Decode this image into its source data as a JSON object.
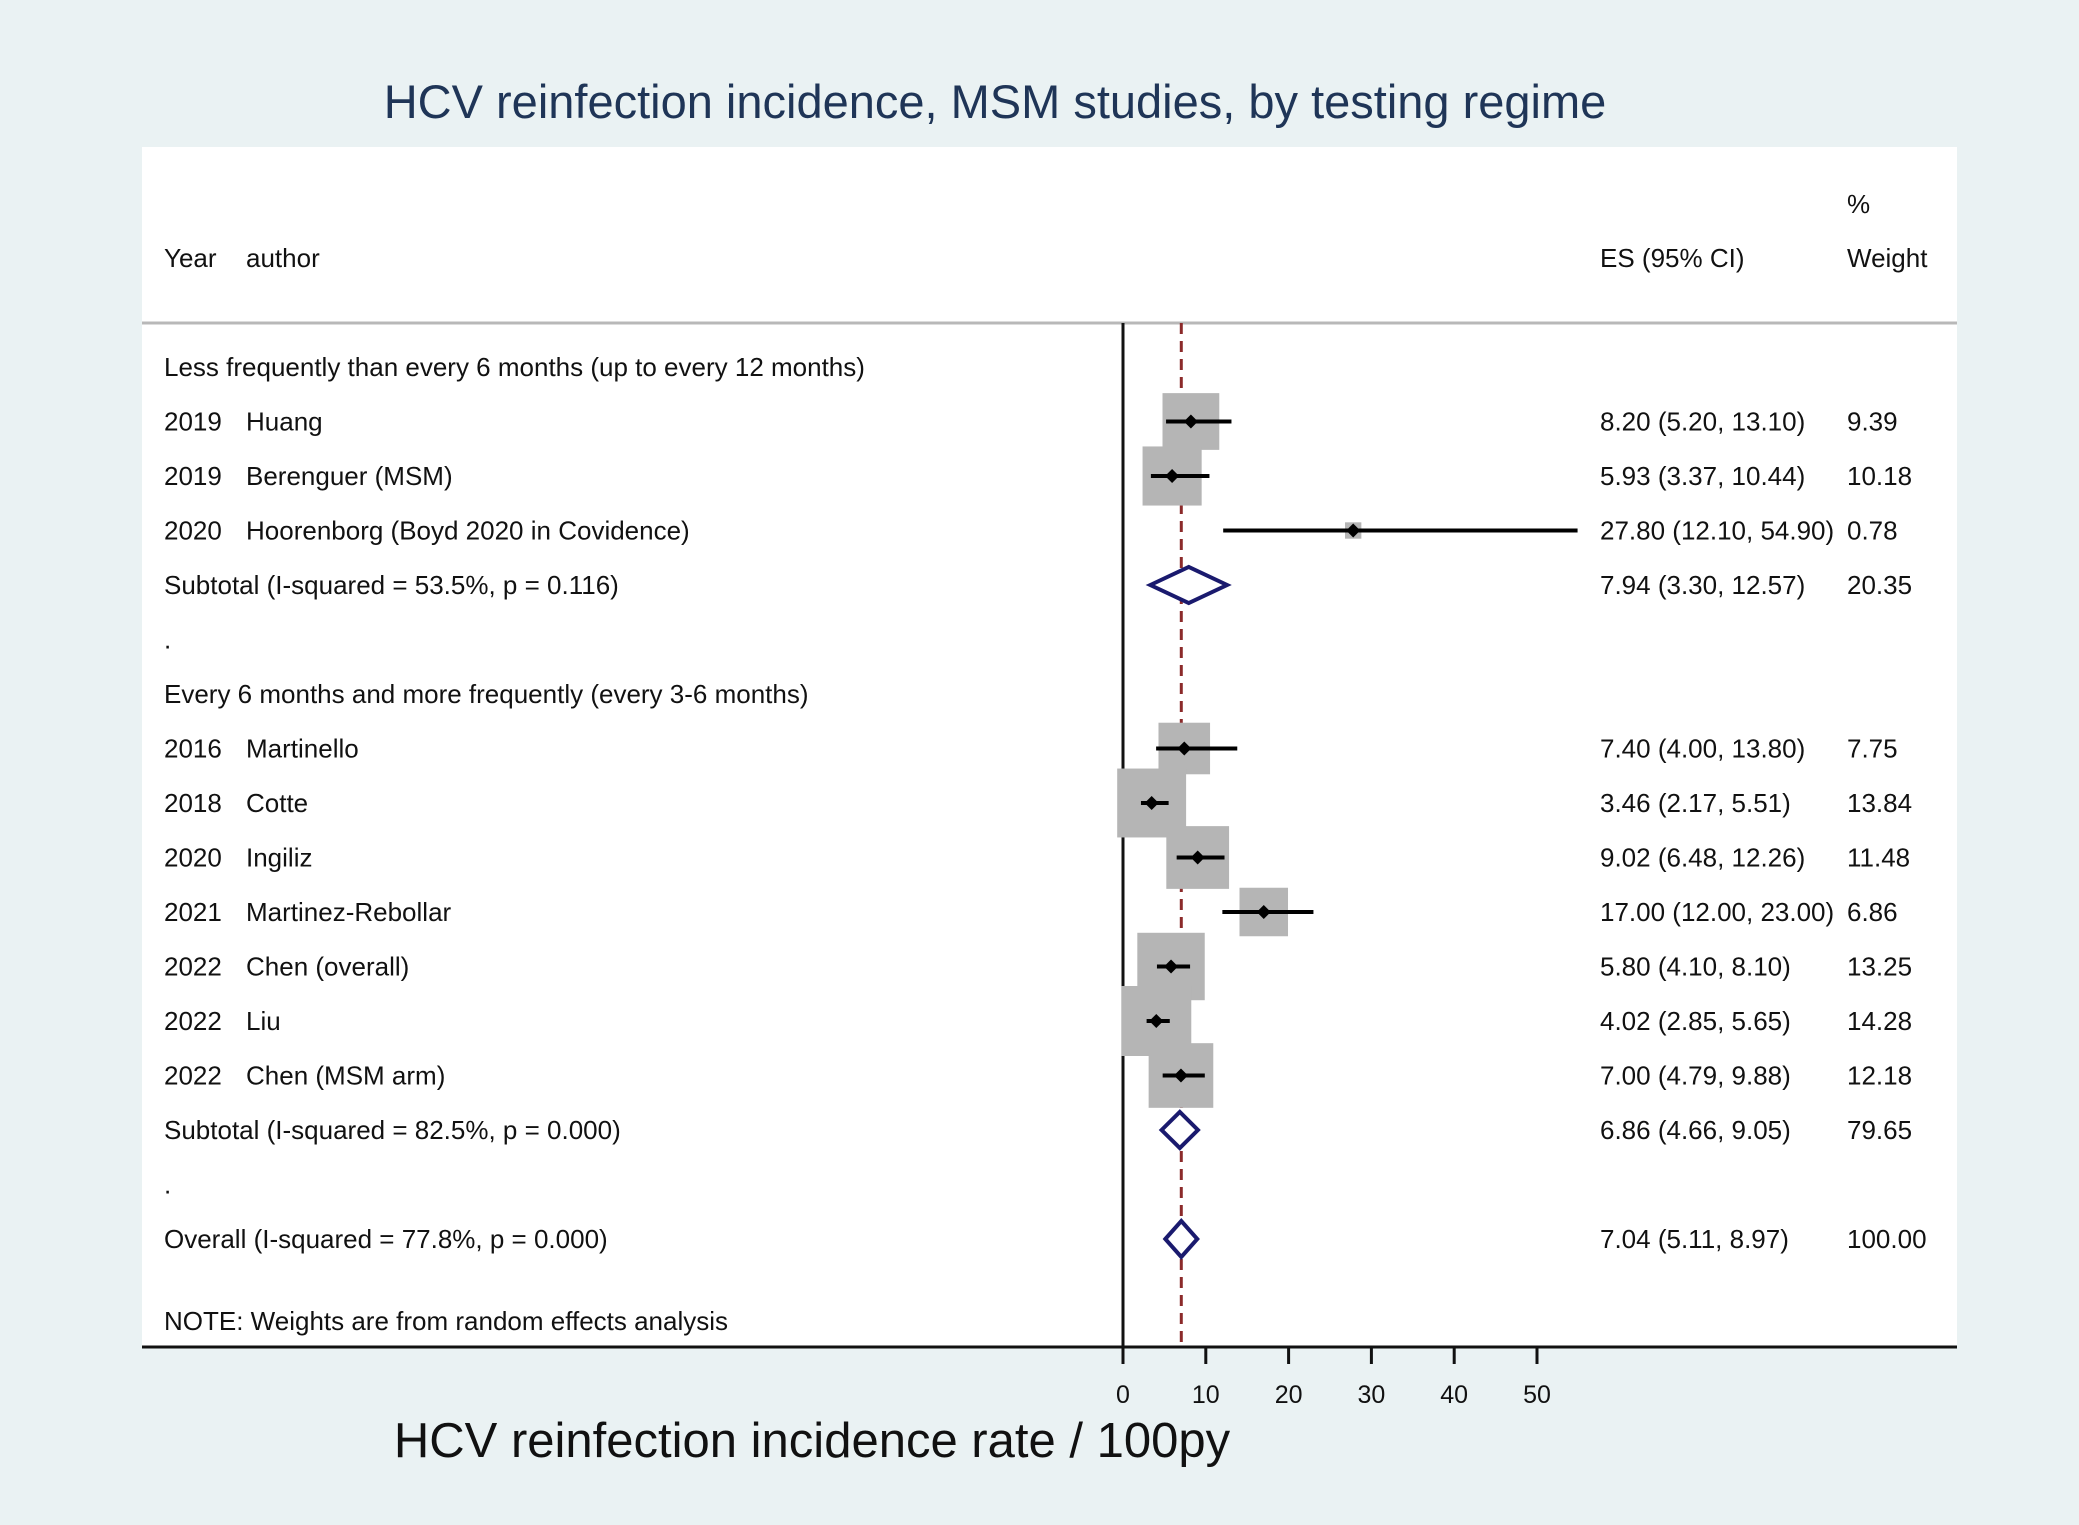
{
  "chart_data": {
    "type": "forest",
    "title": "HCV reinfection incidence, MSM studies, by testing regime",
    "xlabel": "HCV reinfection incidence rate / 100py",
    "xlim": [
      0,
      55
    ],
    "xticks": [
      "0",
      "10",
      "20",
      "30",
      "40",
      "50"
    ],
    "xtick_values": [
      0,
      10,
      20,
      30,
      40,
      50
    ],
    "reference_line": 7.04,
    "header": {
      "year": "Year",
      "author": "author",
      "es": "ES (95% CI)",
      "weight_pct": "%",
      "weight": "Weight"
    },
    "groups": [
      {
        "label": "Less frequently than every 6 months (up to every 12 months)",
        "studies": [
          {
            "year": "2019",
            "author": "Huang",
            "es": 8.2,
            "lo": 5.2,
            "hi": 13.1,
            "es_text": "8.20 (5.20, 13.10)",
            "weight": 9.39,
            "weight_text": "9.39"
          },
          {
            "year": "2019",
            "author": "Berenguer (MSM)",
            "es": 5.93,
            "lo": 3.37,
            "hi": 10.44,
            "es_text": "5.93 (3.37, 10.44)",
            "weight": 10.18,
            "weight_text": "10.18"
          },
          {
            "year": "2020",
            "author": "Hoorenborg (Boyd 2020 in Covidence)",
            "es": 27.8,
            "lo": 12.1,
            "hi": 54.9,
            "es_text": "27.80 (12.10, 54.90)",
            "weight": 0.78,
            "weight_text": "0.78"
          }
        ],
        "subtotal": {
          "label": "Subtotal  (I-squared = 53.5%, p = 0.116)",
          "es": 7.94,
          "lo": 3.3,
          "hi": 12.57,
          "es_text": "7.94 (3.30, 12.57)",
          "weight_text": "20.35"
        },
        "separator": "."
      },
      {
        "label": "Every 6 months and more frequently (every 3-6 months)",
        "studies": [
          {
            "year": "2016",
            "author": "Martinello",
            "es": 7.4,
            "lo": 4.0,
            "hi": 13.8,
            "es_text": "7.40 (4.00, 13.80)",
            "weight": 7.75,
            "weight_text": "7.75"
          },
          {
            "year": "2018",
            "author": "Cotte",
            "es": 3.46,
            "lo": 2.17,
            "hi": 5.51,
            "es_text": "3.46 (2.17, 5.51)",
            "weight": 13.84,
            "weight_text": "13.84"
          },
          {
            "year": "2020",
            "author": "Ingiliz",
            "es": 9.02,
            "lo": 6.48,
            "hi": 12.26,
            "es_text": "9.02 (6.48, 12.26)",
            "weight": 11.48,
            "weight_text": "11.48"
          },
          {
            "year": "2021",
            "author": "Martinez-Rebollar",
            "es": 17.0,
            "lo": 12.0,
            "hi": 23.0,
            "es_text": "17.00 (12.00, 23.00)",
            "weight": 6.86,
            "weight_text": "6.86"
          },
          {
            "year": "2022",
            "author": "Chen (overall)",
            "es": 5.8,
            "lo": 4.1,
            "hi": 8.1,
            "es_text": "5.80 (4.10, 8.10)",
            "weight": 13.25,
            "weight_text": "13.25"
          },
          {
            "year": "2022",
            "author": "Liu",
            "es": 4.02,
            "lo": 2.85,
            "hi": 5.65,
            "es_text": "4.02 (2.85, 5.65)",
            "weight": 14.28,
            "weight_text": "14.28"
          },
          {
            "year": "2022",
            "author": "Chen (MSM arm)",
            "es": 7.0,
            "lo": 4.79,
            "hi": 9.88,
            "es_text": "7.00 (4.79, 9.88)",
            "weight": 12.18,
            "weight_text": "12.18"
          }
        ],
        "subtotal": {
          "label": "Subtotal  (I-squared = 82.5%, p = 0.000)",
          "es": 6.86,
          "lo": 4.66,
          "hi": 9.05,
          "es_text": "6.86 (4.66, 9.05)",
          "weight_text": "79.65"
        },
        "separator": "."
      }
    ],
    "overall": {
      "label": "Overall  (I-squared = 77.8%, p = 0.000)",
      "es": 7.04,
      "lo": 5.11,
      "hi": 8.97,
      "es_text": "7.04 (5.11, 8.97)",
      "weight_text": "100.00"
    },
    "note": "NOTE: Weights are from random effects analysis",
    "colors": {
      "background": "#eaf2f3",
      "panel": "#ffffff",
      "title": "#1f3557",
      "box": "#b5b5b5",
      "diamond": "#1a1a6e",
      "reference": "#8b2a2a"
    }
  }
}
